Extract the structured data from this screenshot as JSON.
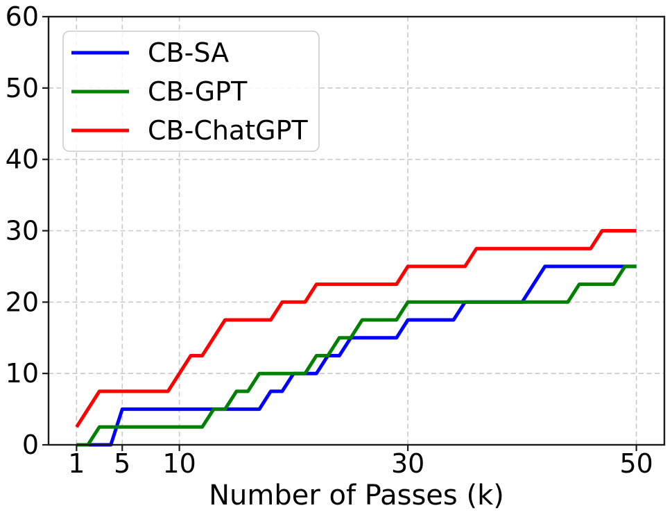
{
  "figure": {
    "background_color": "#ffffff",
    "spine_color": "#1a1a1a",
    "grid_color": "#c8c8c8",
    "tick_color": "#1a1a1a",
    "text_color": "#000000",
    "legend_border_color": "#cccccc",
    "legend_background": "rgba(255,255,255,0.8)"
  },
  "chart_data": {
    "type": "line",
    "title": "",
    "xlabel": "Number of Passes (k)",
    "ylabel": "",
    "xlim": [
      -1.45,
      52.45
    ],
    "ylim": [
      0,
      60
    ],
    "x_ticks": [
      1,
      5,
      10,
      30,
      50
    ],
    "y_ticks": [
      0,
      10,
      20,
      30,
      40,
      50,
      60
    ],
    "grid": "dashed",
    "legend_position": "upper-left",
    "series": [
      {
        "name": "CB-SA",
        "color": "#0000ff",
        "points": [
          [
            1,
            0
          ],
          [
            4,
            0
          ],
          [
            5,
            5
          ],
          [
            17,
            5
          ],
          [
            18,
            7.5
          ],
          [
            19,
            7.5
          ],
          [
            20,
            10
          ],
          [
            22,
            10
          ],
          [
            23,
            12.5
          ],
          [
            24,
            12.5
          ],
          [
            25,
            15
          ],
          [
            29,
            15
          ],
          [
            30,
            17.5
          ],
          [
            34,
            17.5
          ],
          [
            35,
            20
          ],
          [
            40,
            20
          ],
          [
            42,
            25
          ],
          [
            50,
            25
          ]
        ]
      },
      {
        "name": "CB-GPT",
        "color": "#008000",
        "points": [
          [
            1,
            0
          ],
          [
            2,
            0
          ],
          [
            3,
            2.5
          ],
          [
            12,
            2.5
          ],
          [
            13,
            5
          ],
          [
            14,
            5
          ],
          [
            15,
            7.5
          ],
          [
            16,
            7.5
          ],
          [
            17,
            10
          ],
          [
            21,
            10
          ],
          [
            22,
            12.5
          ],
          [
            23,
            12.5
          ],
          [
            24,
            15
          ],
          [
            25,
            15
          ],
          [
            26,
            17.5
          ],
          [
            29,
            17.5
          ],
          [
            30,
            20
          ],
          [
            44,
            20
          ],
          [
            45,
            22.5
          ],
          [
            48,
            22.5
          ],
          [
            49,
            25
          ],
          [
            50,
            25
          ]
        ]
      },
      {
        "name": "CB-ChatGPT",
        "color": "#ff0000",
        "points": [
          [
            1,
            2.5
          ],
          [
            3,
            7.5
          ],
          [
            9,
            7.5
          ],
          [
            11,
            12.5
          ],
          [
            12,
            12.5
          ],
          [
            14,
            17.5
          ],
          [
            18,
            17.5
          ],
          [
            19,
            20
          ],
          [
            21,
            20
          ],
          [
            22,
            22.5
          ],
          [
            29,
            22.5
          ],
          [
            30,
            25
          ],
          [
            35,
            25
          ],
          [
            36,
            27.5
          ],
          [
            46,
            27.5
          ],
          [
            47,
            30
          ],
          [
            50,
            30
          ]
        ]
      }
    ]
  }
}
